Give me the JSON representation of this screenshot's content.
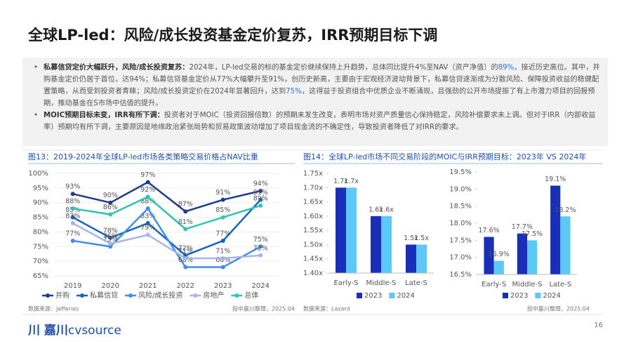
{
  "title": "全球LP-led：风险/成长投资基金定价复苏，IRR预期目标下调",
  "bullets": [
    {
      "lead": "私募信贷定价大幅跃升，风险/成长投资复苏：",
      "segments": [
        {
          "text": "2024年，LP-led交易的标的基金定价继续保持上升趋势，总体同比提升4%至NAV（资产净值）的"
        },
        {
          "text": "89%",
          "color": "#2f6fd6"
        },
        {
          "text": "，接近历史高位。其中，并购基金定价仍居于首位，达94%；私募信贷基金定价从77%大幅攀升至91%，创历史新高，主要由于宏观经济波动背景下，私募信贷逐渐成为分散风险、保障投资收益的稳健配置策略，从而受到投资者青睐；风险/成长投资定价在2024年显著回升，达到"
        },
        {
          "text": "75%",
          "color": "#2f6fd6"
        },
        {
          "text": "，这得益于投资组合中优质企业不断涌现，且强劲的公开市场提振了有上市潜力项目的回报预期，推动基金在S市场中估值的提升。"
        }
      ]
    },
    {
      "lead": "MOIC预期目标未变，IRR有所下调：",
      "segments": [
        {
          "text": "投资者对于MOIC（投资回报倍数）的预期未发生改变，表明市场对资产质量信心保持稳定，风险补偿要求未上调。但对于IRR（内部收益率）预期均有所下调，主要原因是地缘政治紧张局势和贸易政策波动增加了项目现金流的不确定性，导致投资者降低了对IRR的要求。"
        }
      ]
    }
  ],
  "chart_data": [
    {
      "type": "line",
      "title": "图13：2019-2024年全球LP-led市场各类策略交易价格占NAV比重",
      "categories": [
        "2019",
        "2020",
        "2021",
        "2022",
        "2023",
        "2024"
      ],
      "ylim": [
        65,
        100
      ],
      "yticks": [
        {
          "value": 65,
          "label": "65%"
        },
        {
          "value": 70,
          "label": "70%"
        },
        {
          "value": 75,
          "label": "75%"
        },
        {
          "value": 80,
          "label": "80%"
        },
        {
          "value": 85,
          "label": "85%"
        },
        {
          "value": 90,
          "label": "90%"
        },
        {
          "value": 95,
          "label": "95%"
        },
        {
          "value": 100,
          "label": "100%"
        }
      ],
      "grid": true,
      "series": [
        {
          "name": "并购",
          "color": "#1f3a93",
          "values": [
            93,
            90,
            97,
            87,
            91,
            94
          ],
          "value_labels": [
            "93%",
            "90%",
            "97%",
            "87%",
            "91%",
            "94%"
          ]
        },
        {
          "name": "私募信贷",
          "color": "#1565c0",
          "values": [
            85,
            78,
            83,
            72,
            77,
            91
          ],
          "value_labels": [
            "85%",
            "78%",
            "83%",
            "72%",
            "77%",
            "91%"
          ]
        },
        {
          "name": "风险/成长投资",
          "color": "#3d8ef0",
          "values": [
            77,
            75,
            88,
            68,
            68,
            75
          ],
          "value_labels": [
            "77%",
            "75%",
            "88%",
            "68%",
            "68%",
            "75%"
          ]
        },
        {
          "name": "房地产",
          "color": "#a9b4e6",
          "values": [
            83,
            76,
            79,
            71,
            71,
            72
          ],
          "value_labels": [
            "83%",
            "76%",
            "79%",
            "71%",
            "71%",
            "72%"
          ]
        },
        {
          "name": "总体",
          "color": "#2ec4b6",
          "values": [
            88,
            86,
            92,
            81,
            85,
            89
          ],
          "value_labels": [
            "88%",
            "86%",
            "92%",
            "81%",
            "85%",
            "89%"
          ]
        }
      ],
      "source": "数据来源：Jefferies",
      "credit": "投中嘉川整理，2025.04"
    },
    {
      "type": "bar",
      "title": "图14：全球LP-led市场不同交易阶段的MOIC与IRR预期目标：2023年 VS 2024年",
      "categories": [
        "Early-S",
        "Middle-S",
        "Late-S"
      ],
      "ylim": [
        1.4,
        1.75
      ],
      "yticks": [
        {
          "value": 1.4,
          "label": "1.40x"
        },
        {
          "value": 1.45,
          "label": "1.45x"
        },
        {
          "value": 1.5,
          "label": "1.50x"
        },
        {
          "value": 1.55,
          "label": "1.55x"
        },
        {
          "value": 1.6,
          "label": "1.60x"
        },
        {
          "value": 1.65,
          "label": "1.65x"
        },
        {
          "value": 1.7,
          "label": "1.70x"
        },
        {
          "value": 1.75,
          "label": "1.75x"
        }
      ],
      "series": [
        {
          "name": "2023",
          "color": "#1a2fb8",
          "values": [
            1.7,
            1.6,
            1.5
          ],
          "value_labels": [
            "1.7x",
            "1.6x",
            "1.5x"
          ]
        },
        {
          "name": "2024",
          "color": "#5bc8f5",
          "values": [
            1.7,
            1.6,
            1.5
          ],
          "value_labels": [
            "1.7x",
            "1.6x",
            "1.5x"
          ]
        }
      ],
      "source": "数据来源：Lazard",
      "credit": "投中嘉川整理，2025.04"
    },
    {
      "type": "bar",
      "categories": [
        "Early-S",
        "Middle-S",
        "Late-S"
      ],
      "ylim": [
        16.5,
        19.5
      ],
      "yticks": [
        {
          "value": 16.5,
          "label": "16.5%"
        },
        {
          "value": 17,
          "label": "17.0%"
        },
        {
          "value": 17.5,
          "label": "17.5%"
        },
        {
          "value": 18,
          "label": "18.0%"
        },
        {
          "value": 18.5,
          "label": "18.5%"
        },
        {
          "value": 19,
          "label": "19.0%"
        },
        {
          "value": 19.5,
          "label": "19.5%"
        }
      ],
      "series": [
        {
          "name": "2023",
          "color": "#1a2fb8",
          "values": [
            17.6,
            17.7,
            19.1
          ],
          "value_labels": [
            "17.6%",
            "17.7%",
            "19.1%"
          ]
        },
        {
          "name": "2024",
          "color": "#5bc8f5",
          "values": [
            16.9,
            17.5,
            18.2
          ],
          "value_labels": [
            "16.9%",
            "17.5%",
            "18.2%"
          ]
        }
      ]
    }
  ],
  "logo": {
    "mark": "川",
    "name": "嘉川",
    "brand": "cvsource"
  },
  "page_number": "16"
}
